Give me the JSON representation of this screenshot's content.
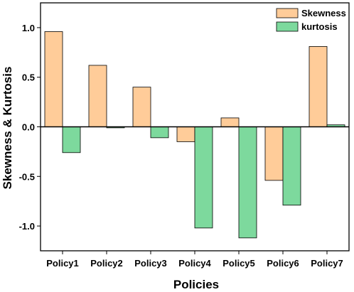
{
  "chart_data": {
    "type": "bar",
    "xlabel": "Policies",
    "ylabel": "Skewness & Kurtosis",
    "categories": [
      "Policy1",
      "Policy2",
      "Policy3",
      "Policy4",
      "Policy5",
      "Policy6",
      "Policy7"
    ],
    "series": [
      {
        "name": "Skewness",
        "color": "#FFCC99",
        "values": [
          0.96,
          0.62,
          0.4,
          -0.15,
          0.09,
          -0.54,
          0.81
        ]
      },
      {
        "name": "kurtosis",
        "color": "#7DD99D",
        "values": [
          -0.26,
          -0.01,
          -0.11,
          -1.02,
          -1.12,
          -0.79,
          0.02
        ]
      }
    ],
    "ylim": [
      -1.25,
      1.25
    ],
    "yticks": [
      -1.0,
      -0.5,
      0.0,
      0.5,
      1.0
    ],
    "ytick_labels": [
      "-1.0",
      "-0.5",
      "0.0",
      "0.5",
      "1.0"
    ],
    "zero_line": true,
    "grid": false,
    "legend_position": "top-right"
  }
}
